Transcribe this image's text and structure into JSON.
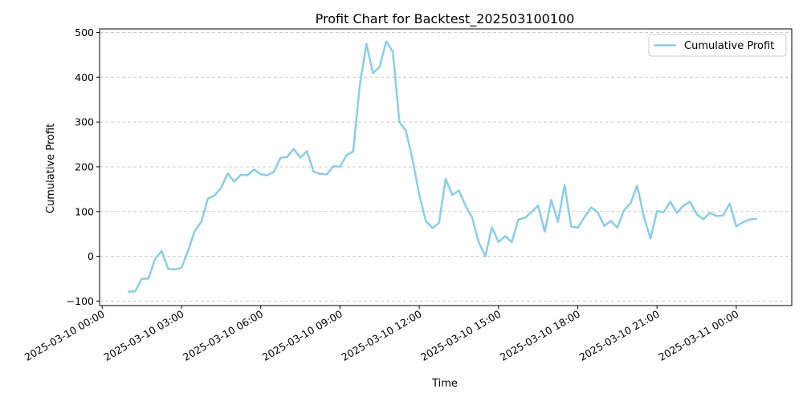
{
  "chart_data": {
    "type": "line",
    "title": "Profit Chart for Backtest_202503100100",
    "xlabel": "Time",
    "ylabel": "Cumulative Profit",
    "x_start": "2025-03-10 01:00",
    "x_step_minutes": 15,
    "xlim": [
      "2025-03-09 23:54",
      "2025-03-11 02:06"
    ],
    "ylim": [
      -110,
      508
    ],
    "x_ticks": [
      "2025-03-10 00:00",
      "2025-03-10 03:00",
      "2025-03-10 06:00",
      "2025-03-10 09:00",
      "2025-03-10 12:00",
      "2025-03-10 15:00",
      "2025-03-10 18:00",
      "2025-03-10 21:00",
      "2025-03-11 00:00"
    ],
    "y_ticks": [
      -100,
      0,
      100,
      200,
      300,
      400,
      500
    ],
    "grid": "y-dashed",
    "legend": "top-right",
    "series": [
      {
        "name": "Cumulative Profit",
        "color": "#87CEEB",
        "values": [
          -79,
          -78,
          -50,
          -50,
          -6,
          12,
          -28,
          -29,
          -26,
          12,
          56,
          77,
          129,
          136,
          153,
          185,
          167,
          182,
          181,
          194,
          183,
          181,
          189,
          220,
          222,
          240,
          220,
          235,
          189,
          184,
          183,
          201,
          200,
          226,
          234,
          382,
          475,
          409,
          423,
          480,
          457,
          300,
          280,
          215,
          138,
          79,
          63,
          75,
          173,
          137,
          147,
          113,
          87,
          32,
          0,
          65,
          32,
          45,
          32,
          82,
          86,
          99,
          113,
          55,
          126,
          77,
          159,
          66,
          64,
          87,
          109,
          99,
          68,
          79,
          64,
          103,
          119,
          158,
          89,
          40,
          101,
          98,
          122,
          97,
          113,
          122,
          94,
          83,
          97,
          90,
          91,
          118,
          67,
          76,
          82,
          84
        ]
      }
    ]
  }
}
